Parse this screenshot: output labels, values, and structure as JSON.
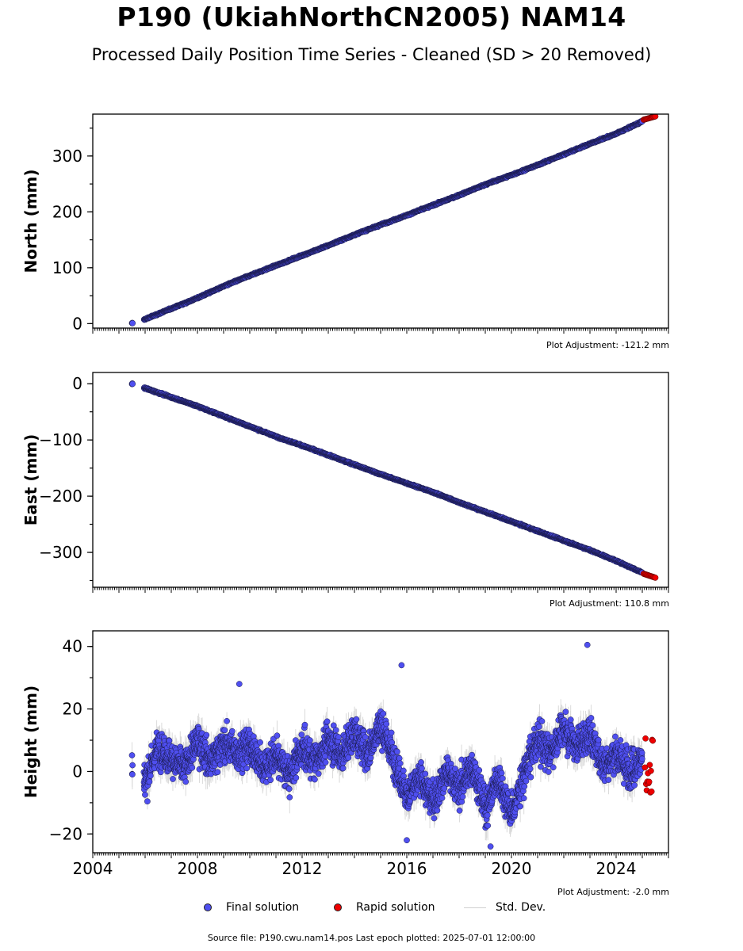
{
  "title": "P190 (UkiahNorthCN2005) NAM14",
  "subtitle": "Processed Daily Position Time Series - Cleaned (SD > 20 Removed)",
  "legend": {
    "final": "Final solution",
    "rapid": "Rapid solution",
    "stddev": "Std. Dev."
  },
  "source": "Source file: P190.cwu.nam14.pos  Last epoch plotted: 2025-07-01 12:00:00",
  "colors": {
    "final": "#4f4ff0",
    "rapid": "#ee0000",
    "stddev": "#bdbdbd",
    "edge": "#1a1a4a"
  },
  "chart_data": [
    {
      "type": "scatter",
      "ylabel": "North (mm)",
      "adjustment": "Plot Adjustment: -121.2 mm",
      "xlim": [
        2004.0,
        2026.0
      ],
      "ylim": [
        -8,
        375
      ],
      "yticks": [
        0,
        100,
        200,
        300
      ],
      "ytick_labels": [
        "0",
        "100",
        "200",
        "300"
      ],
      "xticks": [
        2004,
        2008,
        2012,
        2016,
        2020,
        2024
      ],
      "xtick_labels": [],
      "series": [
        {
          "x": [
            2005.5,
            2006.0,
            2007.0,
            2008.0,
            2009.0,
            2010.0,
            2011.0,
            2012.0,
            2013.0,
            2014.0,
            2015.0,
            2016.0,
            2017.0,
            2018.0,
            2019.0,
            2020.0,
            2021.0,
            2022.0,
            2023.0,
            2024.0,
            2025.0
          ],
          "y": [
            0,
            8,
            27,
            46,
            67,
            86,
            104,
            122,
            140,
            159,
            177,
            194,
            212,
            230,
            249,
            266,
            284,
            303,
            322,
            340,
            362
          ]
        },
        {
          "x": [
            2025.05,
            2025.5
          ],
          "y": [
            365,
            371
          ]
        }
      ]
    },
    {
      "type": "scatter",
      "ylabel": "East (mm)",
      "adjustment": "Plot Adjustment: 110.8 mm",
      "xlim": [
        2004.0,
        2026.0
      ],
      "ylim": [
        -362,
        20
      ],
      "yticks": [
        -300,
        -200,
        -100,
        0
      ],
      "ytick_labels": [
        "−300",
        "−200",
        "−100",
        "0"
      ],
      "xticks": [
        2004,
        2008,
        2012,
        2016,
        2020,
        2024
      ],
      "xtick_labels": [],
      "series": [
        {
          "x": [
            2005.5,
            2006.0,
            2007.0,
            2008.0,
            2009.0,
            2010.0,
            2011.0,
            2012.0,
            2013.0,
            2014.0,
            2015.0,
            2016.0,
            2017.0,
            2018.0,
            2019.0,
            2020.0,
            2021.0,
            2022.0,
            2023.0,
            2024.0,
            2025.0
          ],
          "y": [
            0,
            -8,
            -24,
            -40,
            -58,
            -76,
            -94,
            -110,
            -127,
            -144,
            -161,
            -177,
            -193,
            -211,
            -228,
            -245,
            -262,
            -279,
            -296,
            -315,
            -336
          ]
        },
        {
          "x": [
            2025.05,
            2025.5
          ],
          "y": [
            -338,
            -345
          ]
        }
      ]
    },
    {
      "type": "scatter",
      "ylabel": "Height (mm)",
      "adjustment": "Plot Adjustment: -2.0 mm",
      "xlim": [
        2004.0,
        2026.0
      ],
      "ylim": [
        -26,
        45
      ],
      "yticks": [
        -20,
        0,
        20,
        40
      ],
      "ytick_labels": [
        "−20",
        "0",
        "20",
        "40"
      ],
      "xticks": [
        2004,
        2008,
        2012,
        2016,
        2020,
        2024
      ],
      "xtick_labels": [
        "2004",
        "2008",
        "2012",
        "2016",
        "2020",
        "2024"
      ],
      "series": [
        {
          "x": [
            2005.5,
            2006.0,
            2006.5,
            2007.0,
            2007.5,
            2008.0,
            2008.5,
            2009.0,
            2009.5,
            2010.0,
            2010.5,
            2011.0,
            2011.5,
            2012.0,
            2012.5,
            2013.0,
            2013.5,
            2014.0,
            2014.5,
            2015.0,
            2015.5,
            2016.0,
            2016.5,
            2017.0,
            2017.5,
            2018.0,
            2018.5,
            2019.0,
            2019.5,
            2020.0,
            2020.5,
            2021.0,
            2021.5,
            2022.0,
            2022.5,
            2023.0,
            2023.5,
            2024.0,
            2024.5,
            2025.0
          ],
          "y": [
            2,
            -3,
            8,
            4,
            1,
            10,
            3,
            9,
            6,
            8,
            1,
            5,
            -1,
            7,
            3,
            10,
            5,
            12,
            6,
            15,
            4,
            -8,
            -2,
            -10,
            0,
            -6,
            2,
            -12,
            -2,
            -14,
            0,
            10,
            6,
            14,
            8,
            12,
            2,
            6,
            0,
            4
          ],
          "scatter_sd": 7
        },
        {
          "x": [
            2025.1,
            2025.4
          ],
          "y": [
            -8,
            11
          ]
        }
      ]
    }
  ]
}
